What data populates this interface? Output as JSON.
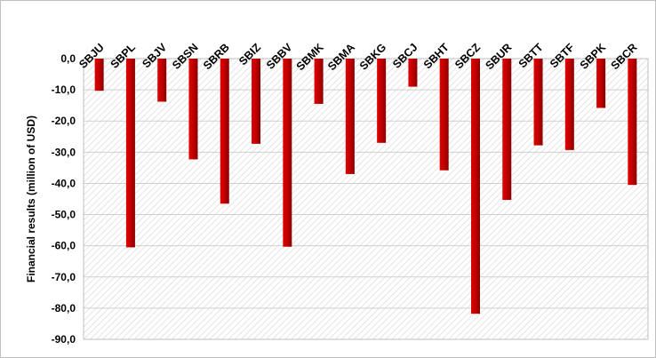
{
  "chart_data": {
    "type": "bar",
    "categories": [
      "SBJU",
      "SBPL",
      "SBJV",
      "SBSN",
      "SBRB",
      "SBIZ",
      "SBBV",
      "SBMK",
      "SBMA",
      "SBKG",
      "SBCJ",
      "SBHT",
      "SBCZ",
      "SBUR",
      "SBTT",
      "SBTF",
      "SBPK",
      "SBCR"
    ],
    "values": [
      -10.3,
      -60.5,
      -13.8,
      -32.3,
      -46.5,
      -27.3,
      -60.3,
      -14.5,
      -37.0,
      -27.0,
      -9.0,
      -35.8,
      -81.8,
      -45.3,
      -27.8,
      -29.3,
      -15.8,
      -40.5
    ],
    "title": "",
    "xlabel": "",
    "ylabel": "Financial results (million of USD)",
    "ylim": [
      -90,
      0
    ],
    "yticks": [
      "0,0",
      "-10,0",
      "-20,0",
      "-30,0",
      "-40,0",
      "-50,0",
      "-60,0",
      "-70,0",
      "-80,0",
      "-90,0"
    ],
    "grid": true,
    "bar_color": "#c00000"
  }
}
